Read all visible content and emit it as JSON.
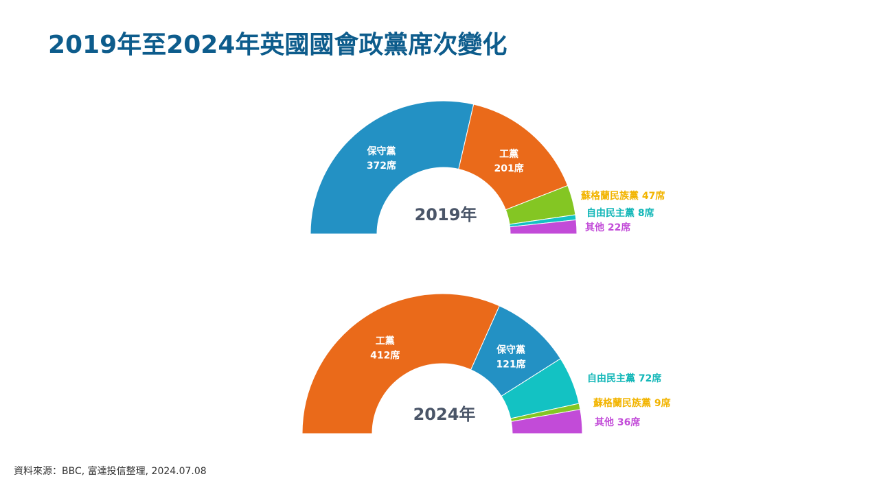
{
  "title": "2019年至2024年英國國會政黨席次變化",
  "source": "資料來源：BBC, 富達投信整理, 2024.07.08",
  "chart_data": {
    "type": "pie",
    "subtype": "half-donut",
    "charts": [
      {
        "center_label": "2019年",
        "series": [
          {
            "party": "保守黨",
            "seats": 372,
            "seats_label": "372席",
            "color": "#2391c4",
            "label_pos": "inside",
            "label_color": "#ffffff"
          },
          {
            "party": "工黨",
            "seats": 201,
            "seats_label": "201席",
            "color": "#ea6a1a",
            "label_pos": "inside",
            "label_color": "#ffffff"
          },
          {
            "party": "蘇格蘭民族黨",
            "seats": 47,
            "seats_label": "47席",
            "color": "#84c623",
            "label_pos": "outside",
            "label_color": "#f2b400"
          },
          {
            "party": "自由民主黨",
            "seats": 8,
            "seats_label": "8席",
            "color": "#13c2c3",
            "label_pos": "outside",
            "label_color": "#13b7b8"
          },
          {
            "party": "其他",
            "seats": 22,
            "seats_label": "22席",
            "color": "#c24bd8",
            "label_pos": "outside",
            "label_color": "#c24bd8"
          }
        ]
      },
      {
        "center_label": "2024年",
        "series": [
          {
            "party": "工黨",
            "seats": 412,
            "seats_label": "412席",
            "color": "#ea6a1a",
            "label_pos": "inside",
            "label_color": "#ffffff"
          },
          {
            "party": "保守黨",
            "seats": 121,
            "seats_label": "121席",
            "color": "#2391c4",
            "label_pos": "inside",
            "label_color": "#ffffff"
          },
          {
            "party": "自由民主黨",
            "seats": 72,
            "seats_label": "72席",
            "color": "#13c2c3",
            "label_pos": "outside",
            "label_color": "#13b7b8"
          },
          {
            "party": "蘇格蘭民族黨",
            "seats": 9,
            "seats_label": "9席",
            "color": "#84c623",
            "label_pos": "outside",
            "label_color": "#f2b400"
          },
          {
            "party": "其他",
            "seats": 36,
            "seats_label": "36席",
            "color": "#c24bd8",
            "label_pos": "outside",
            "label_color": "#c24bd8"
          }
        ]
      }
    ]
  }
}
